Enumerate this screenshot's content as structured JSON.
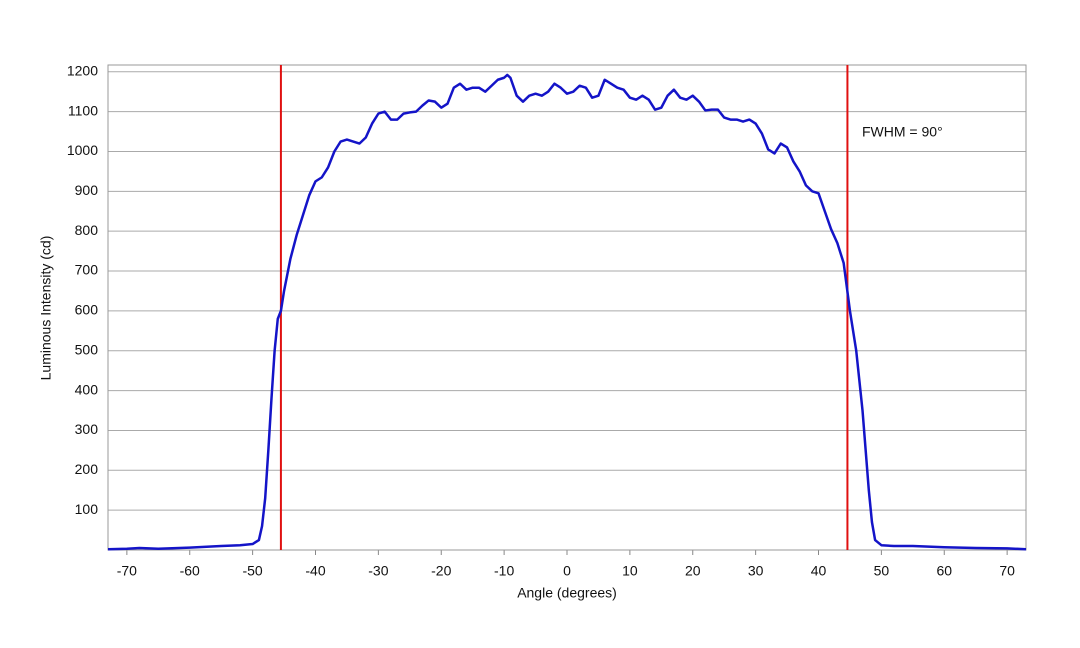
{
  "chart_data": {
    "type": "line",
    "x_label": "Angle (degrees)",
    "y_label": "Luminous Intensity (cd)",
    "annotation": "FWHM = 90°",
    "xlim": [
      -73,
      73
    ],
    "ylim": [
      0,
      1217
    ],
    "xticks": [
      -70,
      -60,
      -50,
      -40,
      -30,
      -20,
      -10,
      0,
      10,
      20,
      30,
      40,
      50,
      60,
      70
    ],
    "yticks": [
      100,
      200,
      300,
      400,
      500,
      600,
      700,
      800,
      900,
      1000,
      1100,
      1200
    ],
    "grid": true,
    "vlines": [
      -45.5,
      44.6
    ],
    "vline_color": "#e01010",
    "series": [
      {
        "color": "#1414c8",
        "x": [
          -73,
          -70,
          -68,
          -65,
          -60,
          -55,
          -52,
          -50,
          -49,
          -48.5,
          -48,
          -47.5,
          -47,
          -46.5,
          -46,
          -45.5,
          -45,
          -44,
          -43,
          -42,
          -41,
          -40,
          -39,
          -38,
          -37,
          -36,
          -35,
          -34,
          -33,
          -32,
          -31,
          -30,
          -29,
          -28,
          -27,
          -26,
          -25,
          -24,
          -23,
          -22,
          -21,
          -20,
          -19,
          -18,
          -17,
          -16,
          -15,
          -14,
          -13,
          -12,
          -11,
          -10,
          -9.5,
          -9,
          -8,
          -7,
          -6,
          -5,
          -4,
          -3,
          -2,
          -1,
          0,
          1,
          2,
          3,
          4,
          5,
          6,
          7,
          8,
          9,
          10,
          11,
          12,
          13,
          14,
          15,
          16,
          17,
          18,
          19,
          20,
          21,
          22,
          23,
          24,
          25,
          26,
          27,
          28,
          29,
          30,
          31,
          32,
          33,
          34,
          35,
          36,
          37,
          38,
          39,
          40,
          41,
          42,
          43,
          44,
          45,
          46,
          47,
          48,
          48.5,
          49,
          50,
          52,
          55,
          60,
          65,
          70,
          73
        ],
        "values": [
          2,
          3,
          5,
          3,
          6,
          10,
          12,
          15,
          25,
          60,
          130,
          250,
          380,
          500,
          580,
          600,
          650,
          730,
          790,
          840,
          890,
          925,
          935,
          960,
          1000,
          1025,
          1030,
          1025,
          1020,
          1035,
          1070,
          1095,
          1100,
          1080,
          1080,
          1095,
          1098,
          1100,
          1115,
          1128,
          1125,
          1110,
          1120,
          1160,
          1170,
          1155,
          1160,
          1160,
          1150,
          1165,
          1180,
          1185,
          1192,
          1185,
          1140,
          1125,
          1140,
          1145,
          1140,
          1150,
          1170,
          1160,
          1145,
          1150,
          1165,
          1160,
          1135,
          1140,
          1180,
          1170,
          1160,
          1155,
          1135,
          1130,
          1140,
          1130,
          1105,
          1110,
          1140,
          1155,
          1135,
          1130,
          1140,
          1125,
          1103,
          1105,
          1105,
          1085,
          1080,
          1080,
          1075,
          1080,
          1070,
          1045,
          1005,
          995,
          1020,
          1010,
          975,
          950,
          915,
          900,
          895,
          850,
          805,
          770,
          720,
          600,
          500,
          350,
          150,
          70,
          25,
          12,
          10,
          10,
          7,
          5,
          4,
          2
        ]
      }
    ]
  }
}
